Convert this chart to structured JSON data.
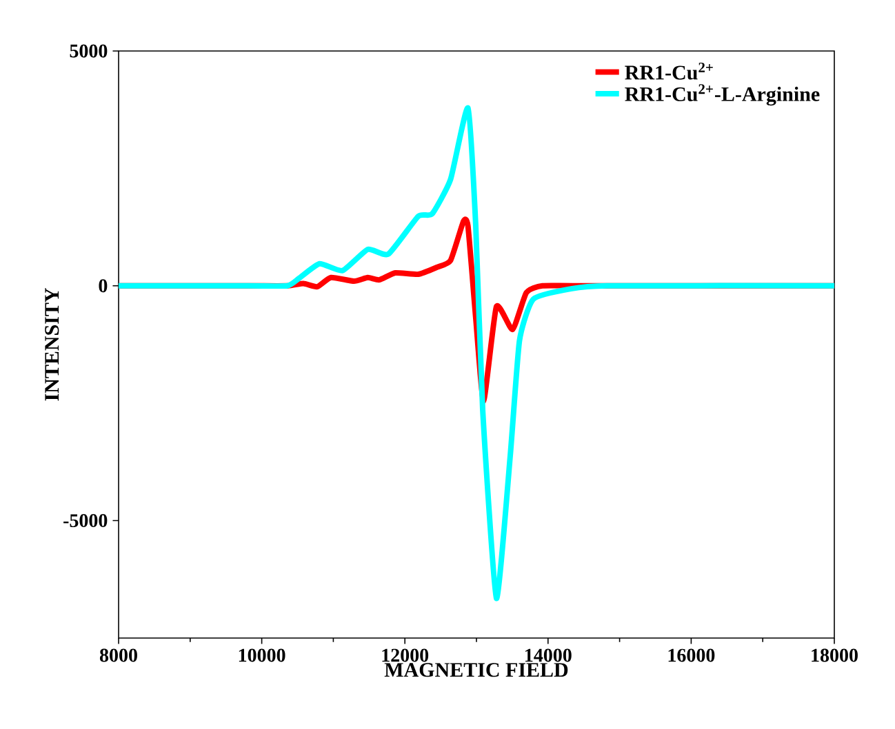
{
  "chart_data": {
    "type": "line",
    "xlabel": "MAGNETIC FIELD",
    "ylabel": "INTENSITY",
    "xlim": [
      8000,
      18000
    ],
    "ylim": [
      -7500,
      5000
    ],
    "xticks": [
      8000,
      10000,
      12000,
      14000,
      16000,
      18000
    ],
    "yticks": [
      -5000,
      0,
      5000
    ],
    "legend": "top right",
    "grid": false,
    "line_style": "solid",
    "marker": "none",
    "series": [
      {
        "name": "RR1-Cu$^{2+}$",
        "color": "#ff0000",
        "x": [
          8000,
          9811,
          10357,
          10582,
          10775,
          10968,
          11289,
          11481,
          11642,
          11866,
          12187,
          12444,
          12638,
          12818,
          12881,
          12990,
          13100,
          13279,
          13504,
          13697,
          13922,
          14500,
          18000
        ],
        "values": [
          0,
          0,
          0,
          49,
          -20,
          176,
          98,
          176,
          127,
          275,
          245,
          392,
          540,
          1373,
          1275,
          -686,
          -2452,
          -441,
          -931,
          -147,
          0,
          0,
          0
        ]
      },
      {
        "name": "RR1-Cu$^{2+}$-L-Arginine",
        "color": "#00ffff",
        "x": [
          8000,
          9811,
          10357,
          10518,
          10807,
          11128,
          11481,
          11770,
          12187,
          12380,
          12638,
          12881,
          12990,
          13087,
          13279,
          13472,
          13601,
          13794,
          14306,
          14821,
          18000
        ],
        "values": [
          0,
          0,
          0,
          156,
          470,
          324,
          775,
          676,
          1480,
          1530,
          2265,
          3785,
          1285,
          -2638,
          -6656,
          -3618,
          -1167,
          -285,
          -68,
          0,
          0
        ]
      }
    ]
  }
}
